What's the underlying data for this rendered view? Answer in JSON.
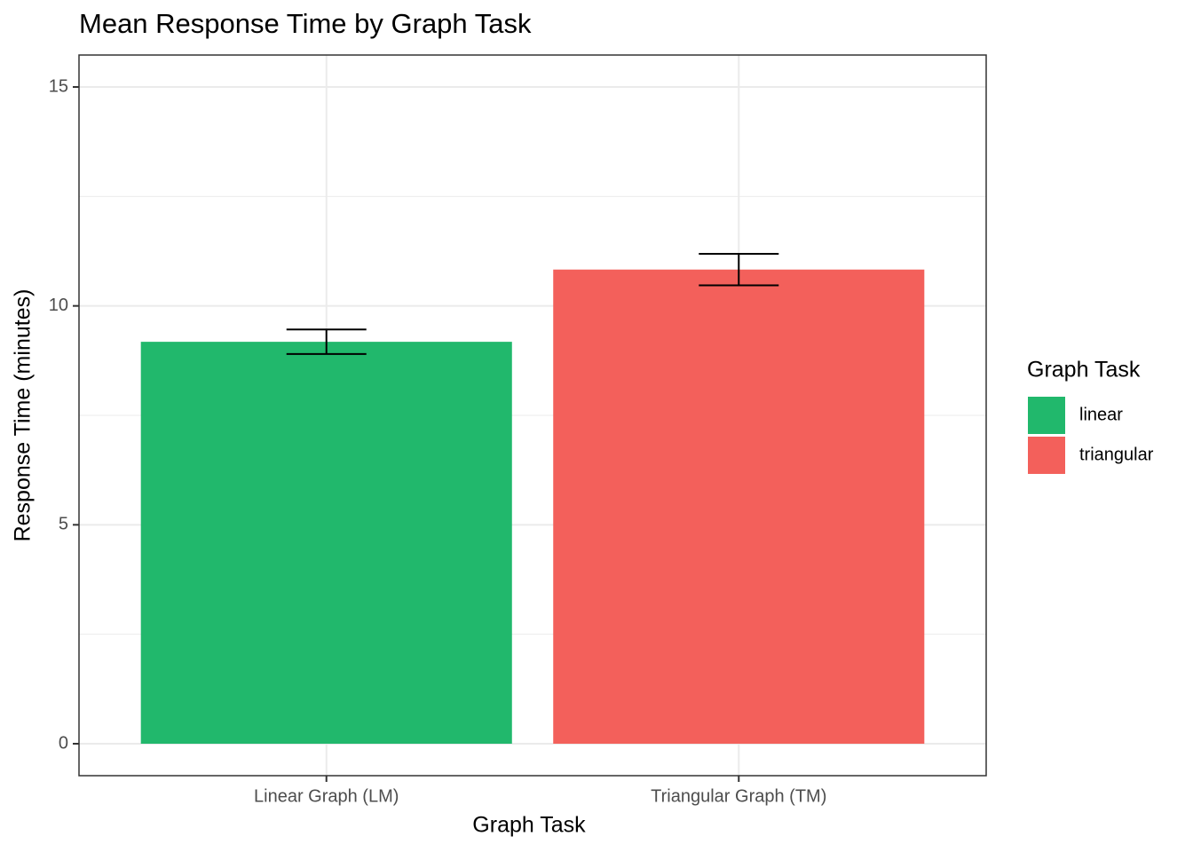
{
  "chart_data": {
    "type": "bar",
    "title": "Mean Response Time by Graph Task",
    "x_label": "Graph Task",
    "y_label": "Response Time (minutes)",
    "categories": [
      "Linear Graph (LM)",
      "Triangular Graph (TM)"
    ],
    "values": [
      9.18,
      10.83
    ],
    "errors": [
      0.28,
      0.36
    ],
    "colors": [
      "#21b86c",
      "#f3605b"
    ],
    "legend": {
      "title": "Graph Task",
      "labels": [
        "linear",
        "triangular"
      ],
      "position": "right"
    },
    "ylim": [
      -0.73,
      15.73
    ],
    "yticks": [
      0,
      5,
      10,
      15
    ],
    "minor_yticks": [
      2.5,
      7.5,
      12.5
    ],
    "grid": true
  }
}
